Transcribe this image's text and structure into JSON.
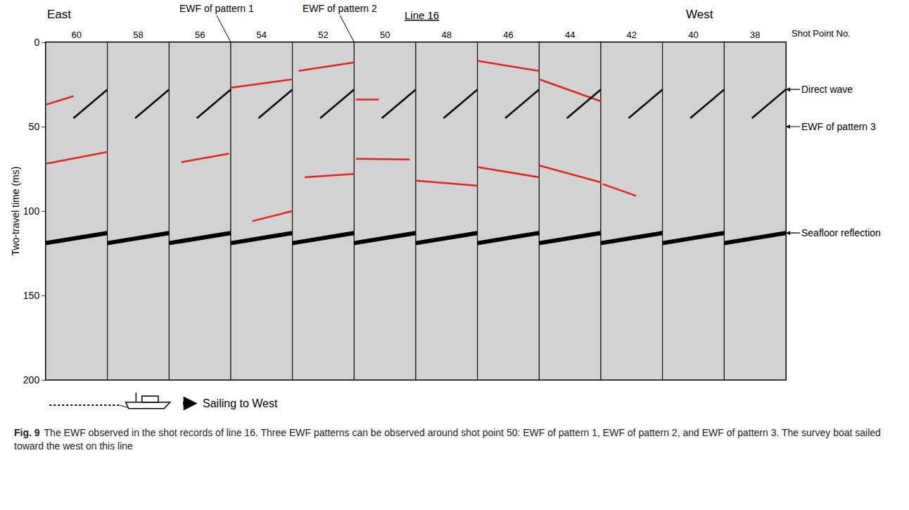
{
  "chart_data": {
    "type": "line",
    "title": "Line 16",
    "x_label": "Shot Point No.",
    "y_label": "Two-travel time (ms)",
    "direction_labels": [
      "East",
      "West"
    ],
    "sailing_label": "Sailing to West",
    "caption_label": "Fig. 9",
    "caption": "The EWF observed in the shot records of line 16. Three EWF patterns can be observed around shot point 50: EWF of pattern 1, EWF of pattern 2, and EWF of pattern 3. The survey boat sailed toward the west on this line",
    "xlim": [
      61,
      37
    ],
    "xticks": [
      60,
      58,
      56,
      54,
      52,
      50,
      48,
      46,
      44,
      42,
      40,
      38
    ],
    "ylim": [
      200,
      0
    ],
    "yticks": [
      0,
      50,
      100,
      150,
      200
    ],
    "grid": false,
    "series": [
      {
        "color": "#e3241b",
        "line_style": "solid",
        "segments": [
          {
            "x": [
              61,
              60.1
            ],
            "y": [
              37,
              32
            ]
          },
          {
            "x": [
              61,
              59
            ],
            "y": [
              72,
              65
            ]
          },
          {
            "x": [
              56.6,
              55.06
            ],
            "y": [
              71,
              66
            ]
          },
          {
            "x": [
              55,
              53
            ],
            "y": [
              27,
              22
            ]
          },
          {
            "x": [
              54.3,
              53
            ],
            "y": [
              106,
              100
            ]
          },
          {
            "x": [
              52.8,
              51
            ],
            "y": [
              17,
              12
            ]
          },
          {
            "x": [
              52.6,
              51
            ],
            "y": [
              80,
              78
            ]
          },
          {
            "x": [
              50.94,
              50.2
            ],
            "y": [
              34,
              34
            ]
          },
          {
            "x": [
              50.94,
              49.2
            ],
            "y": [
              69,
              69.5
            ]
          },
          {
            "x": [
              49,
              47
            ],
            "y": [
              82,
              85
            ]
          },
          {
            "x": [
              47,
              45
            ],
            "y": [
              11,
              17
            ]
          },
          {
            "x": [
              47,
              45
            ],
            "y": [
              74,
              80
            ]
          },
          {
            "x": [
              45,
              43
            ],
            "y": [
              22,
              35
            ]
          },
          {
            "x": [
              45,
              43
            ],
            "y": [
              73,
              83
            ]
          },
          {
            "x": [
              42.94,
              41.86
            ],
            "y": [
              84,
              91
            ]
          }
        ]
      },
      {
        "color": "#000000",
        "line_style": "solid",
        "segments": [
          {
            "x": [
              60.1,
              59
            ],
            "y": [
              45,
              28
            ]
          },
          {
            "x": [
              58.1,
              57
            ],
            "y": [
              45,
              28
            ]
          },
          {
            "x": [
              56.1,
              55
            ],
            "y": [
              45,
              28
            ]
          },
          {
            "x": [
              54.1,
              53
            ],
            "y": [
              45,
              28
            ]
          },
          {
            "x": [
              52.1,
              51
            ],
            "y": [
              45,
              28
            ]
          },
          {
            "x": [
              50.1,
              49
            ],
            "y": [
              45,
              28
            ]
          },
          {
            "x": [
              48.1,
              47
            ],
            "y": [
              45,
              28
            ]
          },
          {
            "x": [
              46.1,
              45
            ],
            "y": [
              45,
              28
            ]
          },
          {
            "x": [
              44.1,
              43
            ],
            "y": [
              45,
              28
            ]
          },
          {
            "x": [
              42.1,
              41
            ],
            "y": [
              45,
              28
            ]
          },
          {
            "x": [
              40.1,
              39
            ],
            "y": [
              45,
              28
            ]
          },
          {
            "x": [
              38.1,
              37
            ],
            "y": [
              45,
              28
            ]
          }
        ]
      },
      {
        "color": "#000000",
        "line_style": "thick",
        "segments": [
          {
            "x": [
              61,
              59
            ],
            "y": [
              119,
              113
            ]
          },
          {
            "x": [
              59,
              57
            ],
            "y": [
              119,
              113
            ]
          },
          {
            "x": [
              57,
              55
            ],
            "y": [
              119,
              113
            ]
          },
          {
            "x": [
              55,
              53
            ],
            "y": [
              119,
              113
            ]
          },
          {
            "x": [
              53,
              51
            ],
            "y": [
              119,
              113
            ]
          },
          {
            "x": [
              51,
              49
            ],
            "y": [
              119,
              113
            ]
          },
          {
            "x": [
              49,
              47
            ],
            "y": [
              119,
              113
            ]
          },
          {
            "x": [
              47,
              45
            ],
            "y": [
              119,
              113
            ]
          },
          {
            "x": [
              45,
              43
            ],
            "y": [
              119,
              113
            ]
          },
          {
            "x": [
              43,
              41
            ],
            "y": [
              119,
              113
            ]
          },
          {
            "x": [
              41,
              39
            ],
            "y": [
              119,
              113
            ]
          },
          {
            "x": [
              39,
              37
            ],
            "y": [
              119,
              113
            ]
          }
        ]
      }
    ],
    "pointers": [
      {
        "text": "EWF of pattern 1",
        "x": 55,
        "y": 0
      },
      {
        "text": "EWF of pattern 2",
        "x": 51,
        "y": 0
      },
      {
        "text": "Direct wave",
        "x": 37,
        "y": 28
      },
      {
        "text": "EWF of pattern 3",
        "x": 37,
        "y": 50
      },
      {
        "text": "Seafloor reflection",
        "x": 37,
        "y": 113
      }
    ]
  }
}
